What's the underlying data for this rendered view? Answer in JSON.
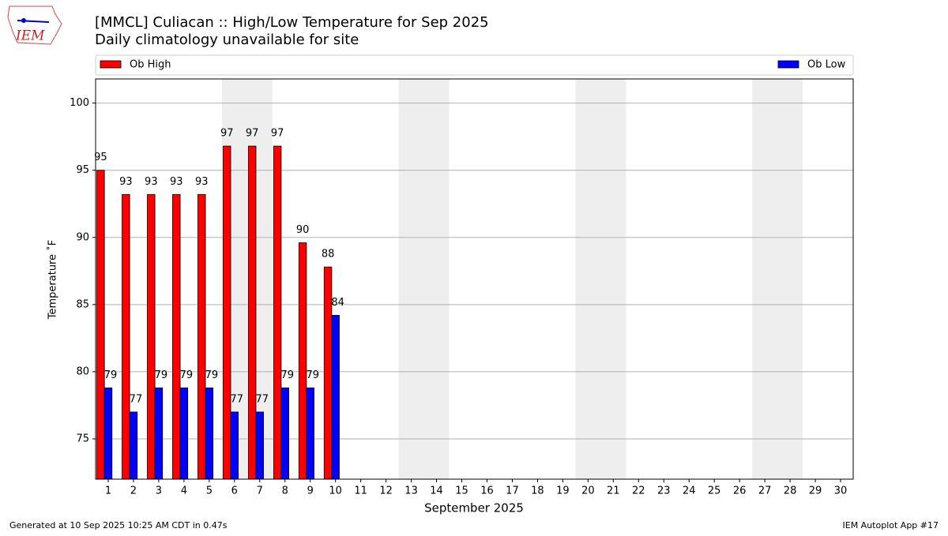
{
  "chart_data": {
    "type": "bar",
    "title": "[MMCL] Culiacan :: High/Low Temperature for Sep 2025",
    "subtitle": "Daily climatology unavailable for site",
    "xlabel": "September 2025",
    "ylabel": "Temperature ˚F",
    "logo_text": "IEM",
    "footer_left": "Generated at 10 Sep 2025 10:25 AM CDT in 0.47s",
    "footer_right": "IEM Autoplot App #17",
    "x": [
      1,
      2,
      3,
      4,
      5,
      6,
      7,
      8,
      9,
      10,
      11,
      12,
      13,
      14,
      15,
      16,
      17,
      18,
      19,
      20,
      21,
      22,
      23,
      24,
      25,
      26,
      27,
      28,
      29,
      30
    ],
    "xlim": [
      0.5,
      30.5
    ],
    "xticks": [
      1,
      2,
      3,
      4,
      5,
      6,
      7,
      8,
      9,
      10,
      11,
      12,
      13,
      14,
      15,
      16,
      17,
      18,
      19,
      20,
      21,
      22,
      23,
      24,
      25,
      26,
      27,
      28,
      29,
      30
    ],
    "ylim": [
      72,
      101.8
    ],
    "yticks": [
      75,
      80,
      85,
      90,
      95,
      100
    ],
    "grid": true,
    "weekends": [
      [
        6,
        7
      ],
      [
        13,
        14
      ],
      [
        20,
        21
      ],
      [
        27,
        28
      ]
    ],
    "series": [
      {
        "name": "Ob High",
        "color": "#ff0000",
        "values": [
          95,
          93.2,
          93.2,
          93.2,
          93.2,
          96.8,
          96.8,
          96.8,
          89.6,
          87.8,
          null,
          null,
          null,
          null,
          null,
          null,
          null,
          null,
          null,
          null,
          null,
          null,
          null,
          null,
          null,
          null,
          null,
          null,
          null,
          null
        ],
        "value_labels": [
          "95",
          "93",
          "93",
          "93",
          "93",
          "97",
          "97",
          "97",
          "90",
          "88",
          null,
          null,
          null,
          null,
          null,
          null,
          null,
          null,
          null,
          null,
          null,
          null,
          null,
          null,
          null,
          null,
          null,
          null,
          null,
          null
        ]
      },
      {
        "name": "Ob Low",
        "color": "#0000ff",
        "values": [
          78.8,
          77,
          78.8,
          78.8,
          78.8,
          77,
          77,
          78.8,
          78.8,
          84.2,
          null,
          null,
          null,
          null,
          null,
          null,
          null,
          null,
          null,
          null,
          null,
          null,
          null,
          null,
          null,
          null,
          null,
          null,
          null,
          null
        ],
        "value_labels": [
          "79",
          "77",
          "79",
          "79",
          "79",
          "77",
          "77",
          "79",
          "79",
          "84",
          null,
          null,
          null,
          null,
          null,
          null,
          null,
          null,
          null,
          null,
          null,
          null,
          null,
          null,
          null,
          null,
          null,
          null,
          null,
          null
        ]
      }
    ]
  }
}
